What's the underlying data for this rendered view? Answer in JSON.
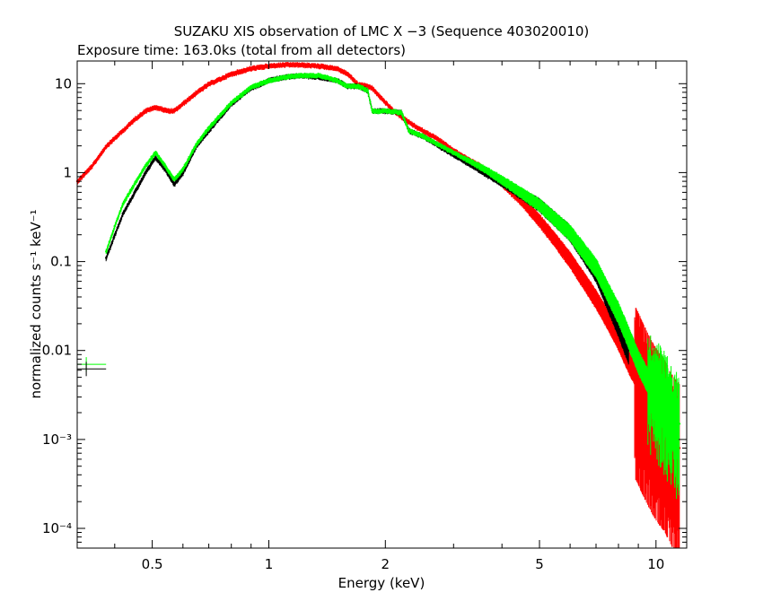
{
  "title": "SUZAKU XIS observation of LMC X −3 (Sequence 403020010)",
  "subtitle": "Exposure time: 163.0ks (total from all detectors)",
  "colors": {
    "red": "#ff0000",
    "green": "#00ff00",
    "black": "#000000"
  },
  "chart_data": {
    "type": "scatter",
    "title": "SUZAKU XIS observation of LMC X −3 (Sequence 403020010)",
    "subtitle": "Exposure time: 163.0ks (total from all detectors)",
    "xlabel": "Energy (keV)",
    "ylabel": "normalized counts s⁻¹ keV⁻¹",
    "x_scale": "log",
    "y_scale": "log",
    "xlim": [
      0.32,
      12.0
    ],
    "ylim": [
      6e-05,
      18
    ],
    "x_ticks": [
      {
        "value": 0.5,
        "label": "0.5"
      },
      {
        "value": 1,
        "label": "1"
      },
      {
        "value": 2,
        "label": "2"
      },
      {
        "value": 5,
        "label": "5"
      },
      {
        "value": 10,
        "label": "10"
      }
    ],
    "y_ticks": [
      {
        "value": 10,
        "label": "10"
      },
      {
        "value": 1,
        "label": "1"
      },
      {
        "value": 0.1,
        "label": "0.1"
      },
      {
        "value": 0.01,
        "label": "0.01"
      },
      {
        "value": 0.001,
        "label": "10⁻³"
      },
      {
        "value": 0.0001,
        "label": "10⁻⁴"
      }
    ],
    "grid": false,
    "series": [
      {
        "color": "#ff0000",
        "x": [
          0.32,
          0.35,
          0.38,
          0.42,
          0.45,
          0.48,
          0.51,
          0.55,
          0.57,
          0.6,
          0.65,
          0.7,
          0.8,
          0.9,
          1.0,
          1.1,
          1.2,
          1.35,
          1.5,
          1.6,
          1.7,
          1.8,
          1.85,
          1.95,
          2.1,
          2.25,
          2.4,
          2.7,
          3.0,
          3.5,
          4.0,
          4.5,
          5.0,
          5.5,
          6.0,
          6.5,
          7.0,
          7.5,
          8.0,
          8.5,
          9.0,
          9.5,
          10.0,
          10.5,
          11.0,
          11.5
        ],
        "y": [
          0.8,
          1.2,
          2.0,
          3.0,
          4.0,
          5.0,
          5.5,
          5.0,
          5.0,
          6.0,
          8.0,
          10.0,
          13.0,
          15.0,
          16.0,
          16.5,
          16.5,
          16.0,
          15.0,
          13.0,
          10.0,
          9.5,
          9.0,
          7.0,
          5.0,
          4.0,
          3.3,
          2.5,
          1.8,
          1.2,
          0.8,
          0.5,
          0.3,
          0.18,
          0.11,
          0.065,
          0.04,
          0.024,
          0.014,
          0.008,
          0.005,
          0.003,
          0.002,
          0.0015,
          0.001,
          0.0008
        ]
      },
      {
        "color": "#000000",
        "x": [
          0.38,
          0.4,
          0.42,
          0.45,
          0.48,
          0.51,
          0.54,
          0.57,
          0.6,
          0.65,
          0.7,
          0.8,
          0.9,
          1.0,
          1.1,
          1.2,
          1.35,
          1.5,
          1.6,
          1.7,
          1.8,
          1.85,
          2.0,
          2.2,
          2.3,
          2.5,
          3.0,
          3.5,
          4.0,
          5.0,
          6.0,
          7.0,
          8.0,
          8.5
        ],
        "y": [
          0.11,
          0.2,
          0.35,
          0.6,
          1.0,
          1.5,
          1.1,
          0.75,
          1.0,
          2.0,
          3.0,
          6.0,
          9.0,
          11.0,
          12.0,
          12.5,
          12.0,
          11.0,
          9.5,
          9.5,
          8.5,
          5.0,
          5.0,
          4.8,
          3.0,
          2.6,
          1.6,
          1.1,
          0.8,
          0.45,
          0.22,
          0.08,
          0.02,
          0.01
        ]
      },
      {
        "color": "#00ff00",
        "x": [
          0.38,
          0.4,
          0.42,
          0.45,
          0.48,
          0.51,
          0.54,
          0.57,
          0.6,
          0.65,
          0.7,
          0.8,
          0.9,
          1.0,
          1.1,
          1.2,
          1.35,
          1.5,
          1.6,
          1.7,
          1.8,
          1.85,
          2.0,
          2.2,
          2.3,
          2.5,
          3.0,
          3.5,
          4.0,
          5.0,
          6.0,
          7.0,
          8.0,
          8.5,
          9.0,
          9.5,
          10.0,
          10.5,
          11.0,
          11.5
        ],
        "y": [
          0.13,
          0.25,
          0.45,
          0.75,
          1.2,
          1.7,
          1.2,
          0.85,
          1.1,
          2.1,
          3.2,
          6.2,
          9.2,
          11.0,
          12.0,
          12.5,
          12.5,
          11.0,
          9.5,
          9.5,
          8.5,
          5.0,
          5.0,
          4.8,
          3.0,
          2.6,
          1.7,
          1.2,
          0.85,
          0.45,
          0.22,
          0.09,
          0.028,
          0.015,
          0.008,
          0.005,
          0.004,
          0.003,
          0.002,
          0.0015
        ]
      }
    ],
    "low_energy_markers": [
      {
        "color": "#00ff00",
        "x_range": [
          0.32,
          0.38
        ],
        "y": 0.007
      },
      {
        "color": "#000000",
        "x_range": [
          0.32,
          0.38
        ],
        "y": 0.0062
      }
    ]
  }
}
